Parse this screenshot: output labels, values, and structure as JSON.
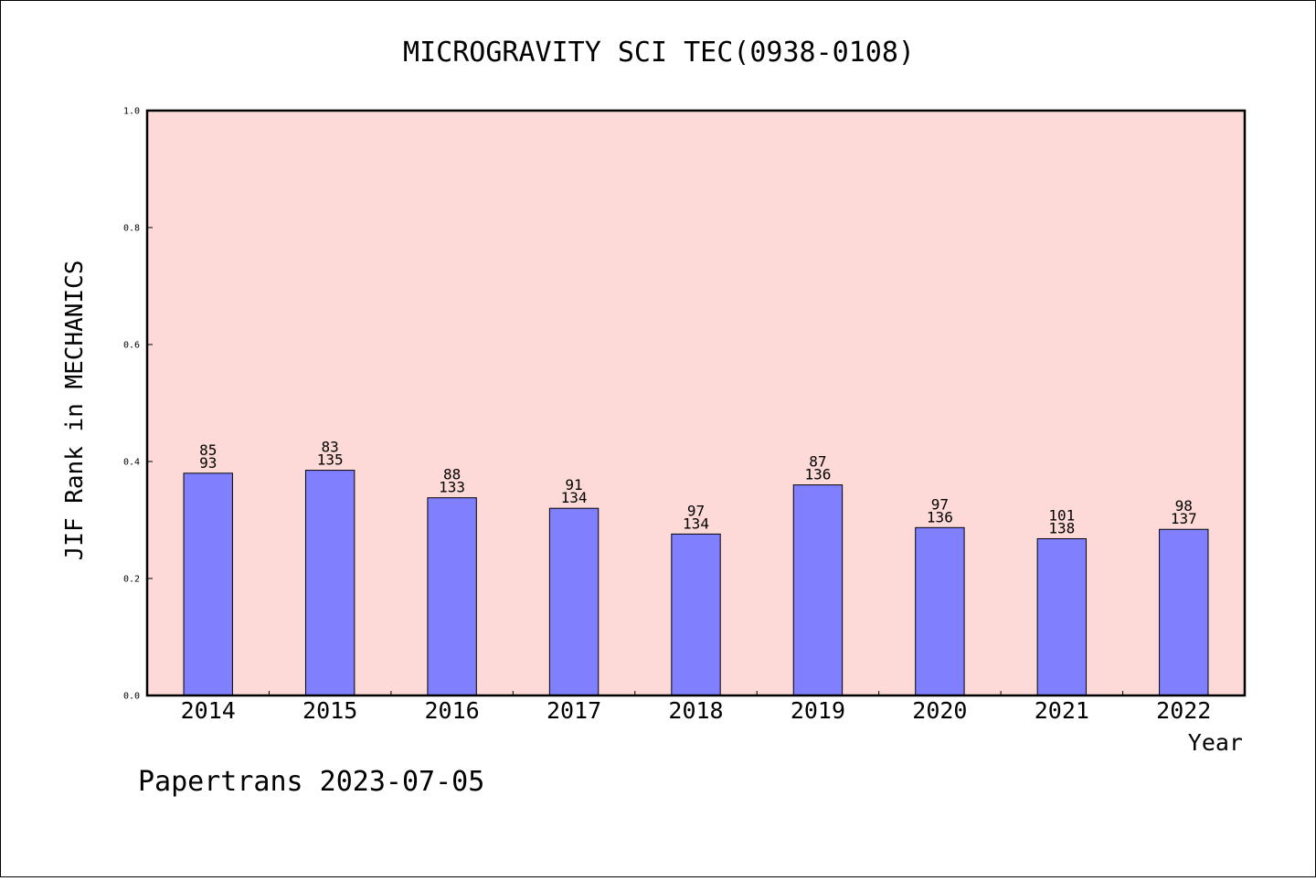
{
  "chart_data": {
    "type": "bar",
    "title": "MICROGRAVITY SCI TEC(0938-0108)",
    "xlabel": "Year",
    "ylabel": "JIF Rank in MECHANICS",
    "ylim": [
      0.0,
      1.0
    ],
    "yticks": [
      "0.0",
      "0.2",
      "0.4",
      "0.6",
      "0.8",
      "1.0"
    ],
    "categories": [
      "2014",
      "2015",
      "2016",
      "2017",
      "2018",
      "2019",
      "2020",
      "2021",
      "2022"
    ],
    "values": [
      0.38,
      0.385,
      0.338,
      0.32,
      0.276,
      0.36,
      0.287,
      0.268,
      0.284
    ],
    "ranks": [
      "85",
      "83",
      "88",
      "91",
      "97",
      "87",
      "97",
      "101",
      "98"
    ],
    "totals": [
      "93",
      "135",
      "133",
      "134",
      "134",
      "136",
      "136",
      "138",
      "137"
    ],
    "grid": false,
    "colors": {
      "plot_background": "#fddad7",
      "bar_fill": "#8080ff",
      "bar_edge": "#000000"
    }
  },
  "footer": "Papertrans 2023-07-05"
}
